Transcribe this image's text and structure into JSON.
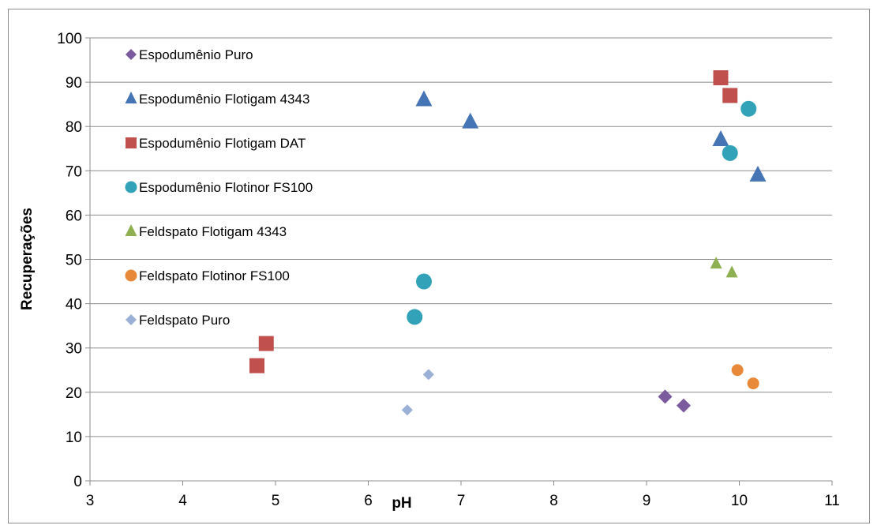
{
  "chart_data": {
    "type": "scatter",
    "title": "",
    "xlabel": "pH",
    "ylabel": "Recuperações",
    "xlim": [
      3,
      11
    ],
    "ylim": [
      0,
      100
    ],
    "x_ticks": [
      "3",
      "4",
      "5",
      "6",
      "7",
      "8",
      "9",
      "10",
      "11"
    ],
    "y_ticks": [
      "0",
      "10",
      "20",
      "30",
      "40",
      "50",
      "60",
      "70",
      "80",
      "90",
      "100"
    ],
    "grid": "horizontal",
    "legend_position": "top-left-inside",
    "series": [
      {
        "name": "Espodumênio Puro",
        "marker": "diamond",
        "color": "#7b5a9e",
        "points": [
          [
            9.2,
            19
          ],
          [
            9.4,
            17
          ]
        ]
      },
      {
        "name": "Espodumênio Flotigam 4343",
        "marker": "triangle",
        "color": "#4575b4",
        "points": [
          [
            6.6,
            86
          ],
          [
            7.1,
            81
          ],
          [
            9.8,
            77
          ],
          [
            10.2,
            69
          ]
        ]
      },
      {
        "name": "Espodumênio Flotigam DAT",
        "marker": "square",
        "color": "#c0504d",
        "points": [
          [
            4.8,
            26
          ],
          [
            4.9,
            31
          ],
          [
            9.8,
            91
          ],
          [
            9.9,
            87
          ]
        ]
      },
      {
        "name": "Espodumênio Flotinor FS100",
        "marker": "circle",
        "color": "#31a2b8",
        "points": [
          [
            6.5,
            37
          ],
          [
            6.6,
            45
          ],
          [
            9.9,
            74
          ],
          [
            10.1,
            84
          ]
        ]
      },
      {
        "name": "Feldspato Flotigam 4343",
        "marker": "triangle-small",
        "color": "#8eb050",
        "points": [
          [
            9.75,
            49
          ],
          [
            9.92,
            47
          ]
        ]
      },
      {
        "name": "Feldspato Flotinor FS100",
        "marker": "circle-small",
        "color": "#e8893a",
        "points": [
          [
            9.98,
            25
          ],
          [
            10.15,
            22
          ]
        ]
      },
      {
        "name": "Feldspato Puro",
        "marker": "diamond-small",
        "color": "#9bb0d6",
        "points": [
          [
            6.42,
            16
          ],
          [
            6.65,
            24
          ]
        ]
      }
    ]
  }
}
